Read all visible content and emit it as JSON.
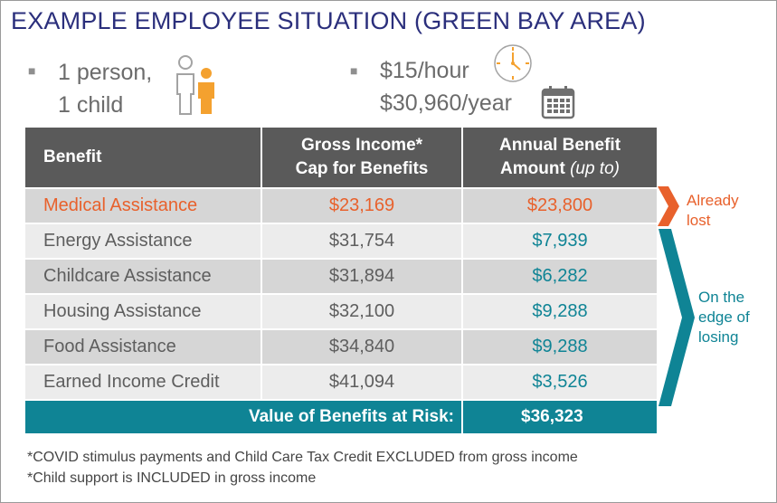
{
  "title": "EXAMPLE EMPLOYEE SITUATION (GREEN BAY AREA)",
  "household": {
    "line1": "1 person,",
    "line2": "1 child",
    "icon": "parent-child-icon"
  },
  "pay": {
    "hourly": "$15/hour",
    "annual": "$30,960/year",
    "clock_icon": "clock-icon",
    "calendar_icon": "calendar-icon"
  },
  "table": {
    "headers": [
      {
        "text": "Benefit"
      },
      {
        "line1": "Gross Income*",
        "line2": "Cap for Benefits"
      },
      {
        "line1": "Annual Benefit",
        "line2a": "Amount ",
        "line2b": "(up to)"
      }
    ],
    "rows": [
      {
        "benefit": "Medical Assistance",
        "cap": "$23,169",
        "amount": "$23,800"
      },
      {
        "benefit": "Energy Assistance",
        "cap": "$31,754",
        "amount": "$7,939"
      },
      {
        "benefit": "Childcare Assistance",
        "cap": "$31,894",
        "amount": "$6,282"
      },
      {
        "benefit": "Housing Assistance",
        "cap": "$32,100",
        "amount": "$9,288"
      },
      {
        "benefit": "Food Assistance",
        "cap": "$34,840",
        "amount": "$9,288"
      },
      {
        "benefit": "Earned Income Credit",
        "cap": "$41,094",
        "amount": "$3,526"
      }
    ],
    "total_label": "Value of Benefits at Risk:",
    "total_value": "$36,323"
  },
  "annotations": {
    "already": {
      "line1": "Already",
      "line2": "lost"
    },
    "edge": {
      "line1": "On the",
      "line2": "edge of",
      "line3": "losing"
    }
  },
  "footnotes": [
    "*COVID stimulus payments and Child Care Tax Credit EXCLUDED from gross income",
    "*Child support is INCLUDED in gross income"
  ],
  "colors": {
    "title": "#2b2f7c",
    "orange": "#e8612c",
    "teal": "#0f8495",
    "header": "#5a5a5a"
  }
}
